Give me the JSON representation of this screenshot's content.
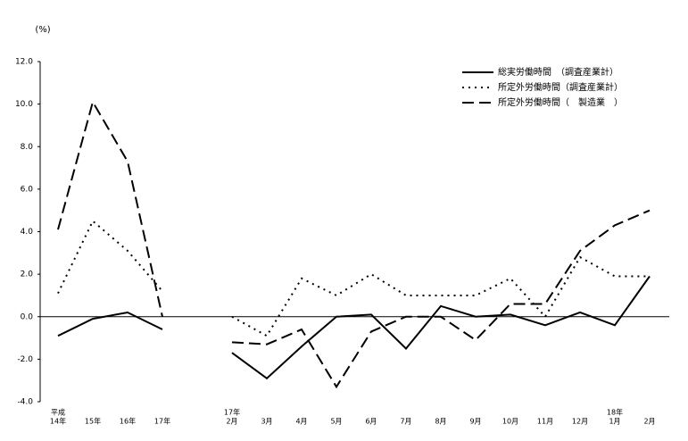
{
  "chart_data": {
    "type": "line",
    "ylabel": "(%)",
    "categories": [
      [
        "平成",
        "14年"
      ],
      [
        "15年"
      ],
      [
        "16年"
      ],
      [
        "17年"
      ],
      null,
      [
        "17年",
        "2月"
      ],
      [
        "3月"
      ],
      [
        "4月"
      ],
      [
        "5月"
      ],
      [
        "6月"
      ],
      [
        "7月"
      ],
      [
        "8月"
      ],
      [
        "9月"
      ],
      [
        "10月"
      ],
      [
        "11月"
      ],
      [
        "12月"
      ],
      [
        "18年",
        "1月"
      ],
      [
        "2月"
      ]
    ],
    "series": [
      {
        "name": "総実労働時間　（調査産業計）",
        "color": "#000000",
        "style": "solid",
        "values": [
          -0.9,
          -0.1,
          0.2,
          -0.6,
          null,
          -1.7,
          -2.9,
          -1.4,
          0.0,
          0.1,
          -1.5,
          0.5,
          0.0,
          0.1,
          -0.4,
          0.2,
          -0.4,
          1.9
        ]
      },
      {
        "name": "所定外労働時間（調査産業計）",
        "color": "#000000",
        "style": "dotted",
        "values": [
          1.1,
          4.5,
          3.1,
          1.2,
          null,
          0.0,
          -0.9,
          1.8,
          1.0,
          2.0,
          1.0,
          1.0,
          1.0,
          1.8,
          0.0,
          2.8,
          1.9,
          1.9
        ]
      },
      {
        "name": "所定外労働時間（　製造業　）",
        "color": "#000000",
        "style": "dashed",
        "values": [
          4.1,
          10.1,
          7.3,
          0.0,
          null,
          -1.2,
          -1.3,
          -0.6,
          -3.3,
          -0.7,
          0.0,
          0.0,
          -1.1,
          0.6,
          0.6,
          3.1,
          4.3,
          5.0
        ]
      }
    ],
    "ylim": [
      -4,
      12
    ],
    "yticks": [
      {
        "value": -4,
        "label": "-4.0"
      },
      {
        "value": -2,
        "label": "-2.0"
      },
      {
        "value": 0,
        "label": "0.0"
      },
      {
        "value": 2,
        "label": "2.0"
      },
      {
        "value": 4,
        "label": "4.0"
      },
      {
        "value": 6,
        "label": "6.0"
      },
      {
        "value": 8,
        "label": "8.0"
      },
      {
        "value": 10,
        "label": "10.0"
      },
      {
        "value": 12,
        "label": "12.0"
      }
    ],
    "legend": "top-right"
  }
}
